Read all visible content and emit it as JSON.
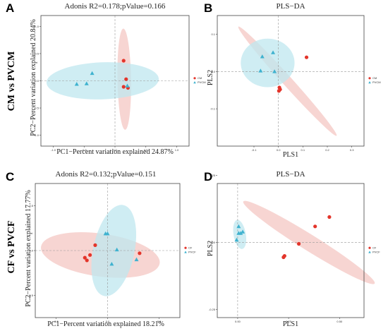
{
  "figure": {
    "rows": [
      {
        "label": "CM vs PVCM"
      },
      {
        "label": "CF vs PVCF"
      }
    ],
    "colors": {
      "group1": "#e3352b",
      "group2": "#3fb2cf",
      "ellipse1": "#f4c7c3",
      "ellipse2": "#bfe7ef"
    }
  },
  "chart_data": [
    {
      "id": "A",
      "type": "scatter",
      "letter": "A",
      "title": "Adonis R2=0.178;pValue=0.166",
      "xlabel": "PC1−Percent variation explained 24.87%",
      "ylabel": "PC2−Percent variation explained 20.84%",
      "xlim": [
        -1.2,
        1.2
      ],
      "ylim": [
        -1.2,
        1.2
      ],
      "xticks": [
        "-1.0",
        "-0.5",
        "0.0",
        "0.5",
        "1.0"
      ],
      "yticks": [
        "-1.0",
        "-0.5",
        "0.0",
        "0.5",
        "1.0"
      ],
      "legend": [
        "CM",
        "PVCM"
      ],
      "series": [
        {
          "name": "CM",
          "points": [
            [
              0.14,
              0.37
            ],
            [
              0.18,
              0.03
            ],
            [
              0.14,
              -0.11
            ],
            [
              0.21,
              -0.13
            ]
          ]
        },
        {
          "name": "PVCM",
          "points": [
            [
              -0.62,
              -0.06
            ],
            [
              -0.46,
              -0.05
            ],
            [
              -0.37,
              0.14
            ],
            [
              0.2,
              -0.09
            ]
          ]
        }
      ],
      "ellipses": [
        {
          "cx": 0.15,
          "cy": 0.03,
          "rx": 0.11,
          "ry": 0.93,
          "angle": 1
        },
        {
          "cx": -0.2,
          "cy": 0.0,
          "rx": 0.91,
          "ry": 0.34,
          "angle": 2
        }
      ]
    },
    {
      "id": "B",
      "type": "scatter",
      "letter": "B",
      "title": "PLS−DA",
      "xlabel": "PLS1",
      "ylabel": "PLS2",
      "xlim": [
        -0.25,
        0.35
      ],
      "ylim": [
        -0.2,
        0.15
      ],
      "xticks": [
        "-0.1",
        "0.0",
        "0.1",
        "0.2",
        "0.3"
      ],
      "yticks": [
        "-0.1",
        "0.0",
        "0.1"
      ],
      "legend": [
        "CM",
        "PVCM"
      ],
      "series": [
        {
          "name": "CM",
          "points": [
            [
              0.115,
              0.038
            ],
            [
              0.004,
              -0.043
            ],
            [
              0.007,
              -0.048
            ],
            [
              0.002,
              -0.052
            ]
          ]
        },
        {
          "name": "PVCM",
          "points": [
            [
              -0.073,
              0.002
            ],
            [
              -0.066,
              0.04
            ],
            [
              -0.022,
              0.051
            ],
            [
              -0.016,
              0.0
            ]
          ]
        }
      ],
      "ellipses": [
        {
          "cx": 0.037,
          "cy": -0.026,
          "rx": 0.3,
          "ry": 0.013,
          "angle": -48
        },
        {
          "cx": -0.044,
          "cy": 0.023,
          "rx": 0.11,
          "ry": 0.065,
          "angle": 0
        }
      ]
    },
    {
      "id": "C",
      "type": "scatter",
      "letter": "C",
      "title": "Adonis R2=0.132;pValue=0.151",
      "xlabel": "PC1−Percent variation explained 18.21%",
      "ylabel": "PC2−Percent variation explained 17.77%",
      "xlim": [
        -0.7,
        0.7
      ],
      "ylim": [
        -0.75,
        0.75
      ],
      "xticks": [
        "-0.5",
        "0.0",
        "0.5"
      ],
      "yticks": [
        "-0.5",
        "0.0",
        "0.5"
      ],
      "legend": [
        "CF",
        "PVCF"
      ],
      "series": [
        {
          "name": "CF",
          "points": [
            [
              -0.12,
              0.06
            ],
            [
              -0.17,
              -0.05
            ],
            [
              -0.22,
              -0.08
            ],
            [
              -0.2,
              -0.11
            ],
            [
              0.31,
              -0.03
            ]
          ]
        },
        {
          "name": "PVCF",
          "points": [
            [
              -0.02,
              0.19
            ],
            [
              0.0,
              0.19
            ],
            [
              0.09,
              0.01
            ],
            [
              0.04,
              -0.15
            ],
            [
              0.28,
              -0.1
            ]
          ]
        }
      ],
      "ellipses": [
        {
          "cx": -0.07,
          "cy": -0.05,
          "rx": 0.58,
          "ry": 0.24,
          "angle": -8
        },
        {
          "cx": 0.06,
          "cy": 0.0,
          "rx": 0.2,
          "ry": 0.52,
          "angle": -12
        }
      ]
    },
    {
      "id": "D",
      "type": "scatter",
      "letter": "D",
      "title": "PLS−DA",
      "xlabel": "PLS1",
      "ylabel": "PLS2",
      "xlim": [
        -0.1,
        0.62
      ],
      "ylim": [
        -0.28,
        0.22
      ],
      "xticks": [
        "0.00",
        "0.25",
        "0.50"
      ],
      "yticks": [
        "-0.25",
        "0.00",
        "0.25"
      ],
      "legend": [
        "CF",
        "PVCF"
      ],
      "series": [
        {
          "name": "CF",
          "points": [
            [
              0.45,
              0.095
            ],
            [
              0.38,
              0.06
            ],
            [
              0.3,
              -0.005
            ],
            [
              0.23,
              -0.05
            ],
            [
              0.225,
              -0.055
            ]
          ]
        },
        {
          "name": "PVCF",
          "points": [
            [
              -0.005,
              0.01
            ],
            [
              0.005,
              0.035
            ],
            [
              0.015,
              0.035
            ],
            [
              0.025,
              0.04
            ],
            [
              0.005,
              0.06
            ]
          ]
        }
      ],
      "ellipses": [
        {
          "cx": 0.35,
          "cy": 0.0,
          "rx": 0.38,
          "ry": 0.03,
          "angle": -32
        },
        {
          "cx": 0.01,
          "cy": 0.03,
          "rx": 0.03,
          "ry": 0.055,
          "angle": 10
        }
      ]
    }
  ]
}
